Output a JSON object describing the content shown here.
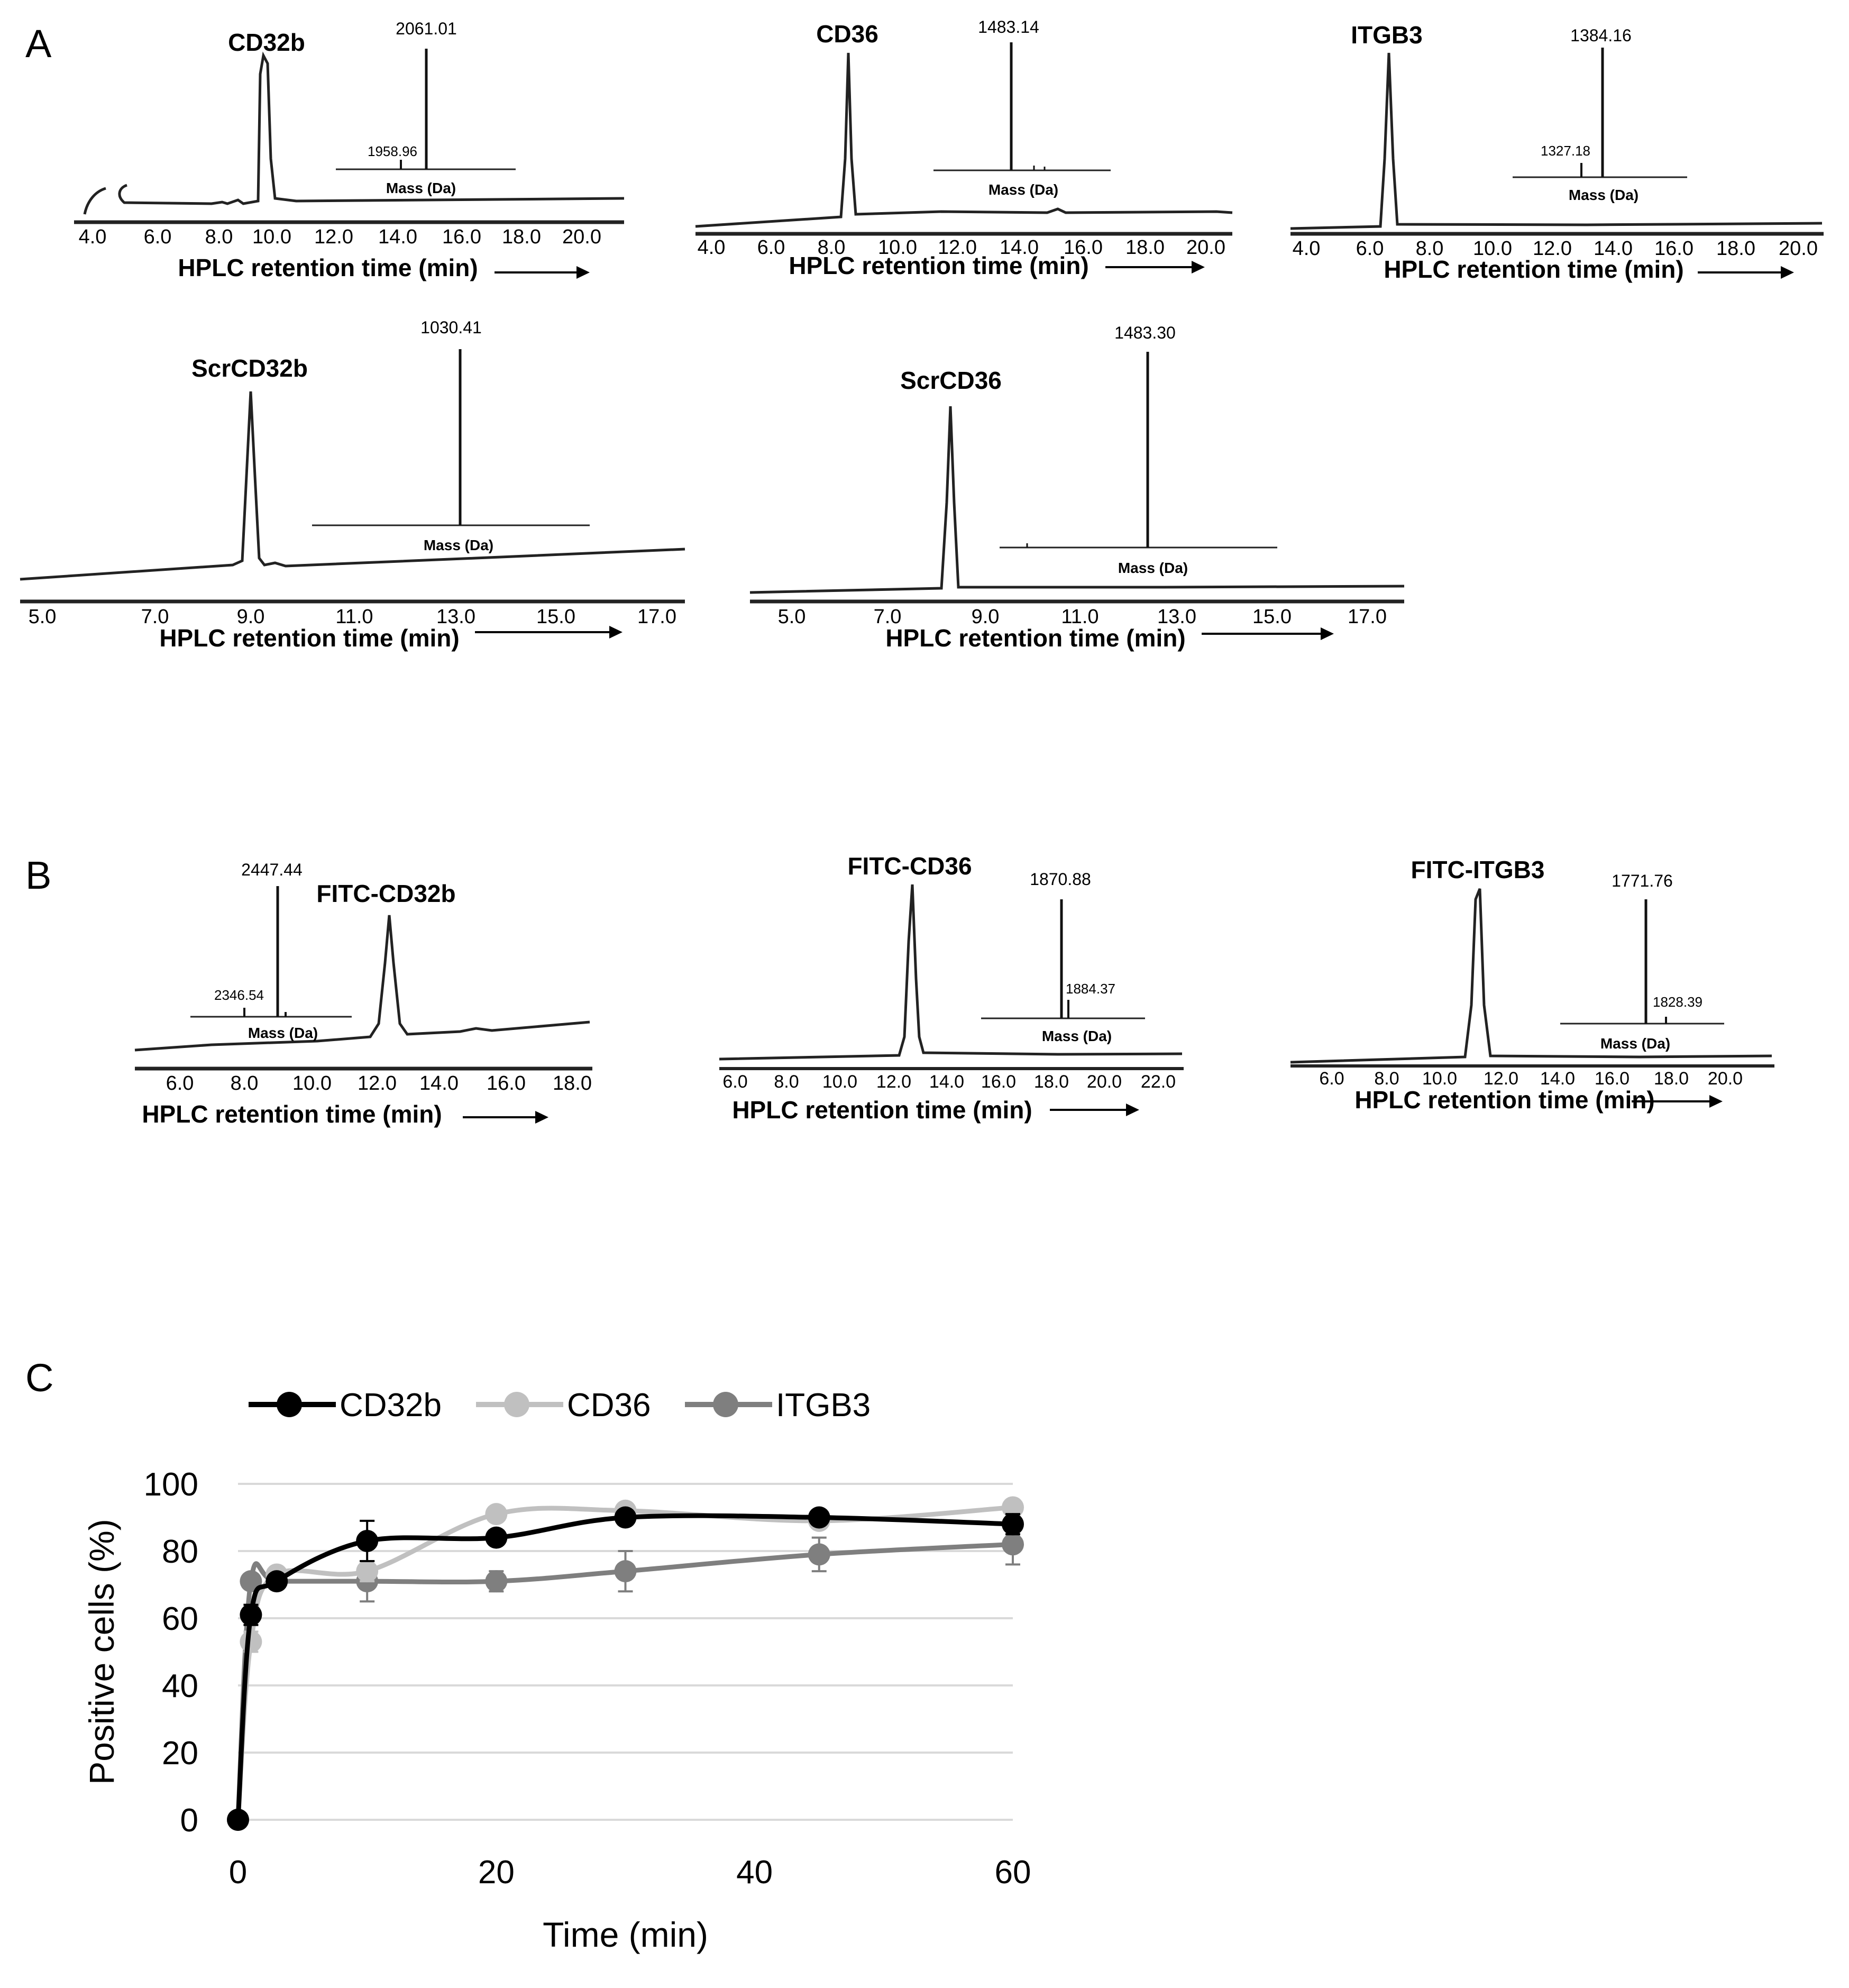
{
  "panel_labels": {
    "a": "A",
    "b": "B",
    "c": "C"
  },
  "colors": {
    "cd32b": "#000000",
    "cd36": "#c0c0c0",
    "itgb3": "#7f7f7f",
    "grid": "#d9d9d9",
    "trace": "#222222"
  },
  "common": {
    "xlabel": "HPLC retention time (min)",
    "mass_label": "Mass (Da)"
  },
  "chart_data": [
    {
      "id": "a1",
      "type": "line",
      "title": "CD32b",
      "xlabel": "HPLC retention time (min)",
      "ticks": [
        "4.0",
        "6.0",
        "8.0",
        "10.0",
        "12.0",
        "14.0",
        "16.0",
        "18.0",
        "20.0"
      ],
      "inset": {
        "xlabel": "Mass (Da)",
        "main_peak": "2061.01",
        "minor_peak": "1958.96"
      }
    },
    {
      "id": "a2",
      "type": "line",
      "title": "CD36",
      "xlabel": "HPLC retention time (min)",
      "ticks": [
        "4.0",
        "6.0",
        "8.0",
        "10.0",
        "12.0",
        "14.0",
        "16.0",
        "18.0",
        "20.0"
      ],
      "inset": {
        "xlabel": "Mass (Da)",
        "main_peak": "1483.14"
      }
    },
    {
      "id": "a3",
      "type": "line",
      "title": "ITGB3",
      "xlabel": "HPLC retention time (min)",
      "ticks": [
        "4.0",
        "6.0",
        "8.0",
        "10.0",
        "12.0",
        "14.0",
        "16.0",
        "18.0",
        "20.0"
      ],
      "inset": {
        "xlabel": "Mass (Da)",
        "main_peak": "1384.16",
        "minor_peak": "1327.18"
      }
    },
    {
      "id": "a4",
      "type": "line",
      "title": "ScrCD32b",
      "xlabel": "HPLC retention time (min)",
      "ticks": [
        "5.0",
        "7.0",
        "9.0",
        "11.0",
        "13.0",
        "15.0",
        "17.0"
      ],
      "inset": {
        "xlabel": "Mass (Da)",
        "main_peak": "1030.41"
      }
    },
    {
      "id": "a5",
      "type": "line",
      "title": "ScrCD36",
      "xlabel": "HPLC retention time (min)",
      "ticks": [
        "5.0",
        "7.0",
        "9.0",
        "11.0",
        "13.0",
        "15.0",
        "17.0"
      ],
      "inset": {
        "xlabel": "Mass (Da)",
        "main_peak": "1483.30"
      }
    },
    {
      "id": "b1",
      "type": "line",
      "title": "FITC-CD32b",
      "xlabel": "HPLC retention time (min)",
      "ticks": [
        "6.0",
        "8.0",
        "10.0",
        "12.0",
        "14.0",
        "16.0",
        "18.0"
      ],
      "inset": {
        "xlabel": "Mass (Da)",
        "main_peak": "2447.44",
        "minor_peak": "2346.54"
      }
    },
    {
      "id": "b2",
      "type": "line",
      "title": "FITC-CD36",
      "xlabel": "HPLC retention time (min)",
      "ticks": [
        "6.0",
        "8.0",
        "10.0",
        "12.0",
        "14.0",
        "16.0",
        "18.0",
        "20.0",
        "22.0"
      ],
      "inset": {
        "xlabel": "Mass (Da)",
        "main_peak": "1870.88",
        "minor_peak": "1884.37"
      }
    },
    {
      "id": "b3",
      "type": "line",
      "title": "FITC-ITGB3",
      "xlabel": "HPLC retention time (min)",
      "ticks": [
        "6.0",
        "8.0",
        "10.0",
        "12.0",
        "14.0",
        "16.0",
        "18.0",
        "20.0"
      ],
      "inset": {
        "xlabel": "Mass (Da)",
        "main_peak": "1771.76",
        "minor_peak": "1828.39"
      }
    },
    {
      "id": "c",
      "type": "line",
      "title": "",
      "xlabel": "Time (min)",
      "ylabel": "Positive cells (%)",
      "xlim": [
        0,
        60
      ],
      "ylim": [
        0,
        100
      ],
      "xticks": [
        "0",
        "20",
        "40",
        "60"
      ],
      "yticks": [
        "0",
        "20",
        "40",
        "60",
        "80",
        "100"
      ],
      "grid": true,
      "legend": "top",
      "x": [
        0,
        1,
        3,
        10,
        20,
        30,
        45,
        60
      ],
      "series": [
        {
          "name": "CD32b",
          "color": "#000000",
          "values": [
            0,
            61,
            71,
            83,
            84,
            90,
            90,
            88
          ],
          "err": [
            0,
            3,
            2,
            6,
            2,
            2,
            2,
            3
          ]
        },
        {
          "name": "CD36",
          "color": "#c0c0c0",
          "values": [
            0,
            53,
            73,
            74,
            91,
            92,
            89,
            93
          ],
          "err": [
            0,
            3,
            2,
            3,
            2,
            2,
            2,
            2
          ]
        },
        {
          "name": "ITGB3",
          "color": "#7f7f7f",
          "values": [
            0,
            71,
            71,
            71,
            71,
            74,
            79,
            82
          ],
          "err": [
            0,
            2,
            2,
            6,
            3,
            6,
            5,
            6
          ]
        }
      ]
    }
  ]
}
